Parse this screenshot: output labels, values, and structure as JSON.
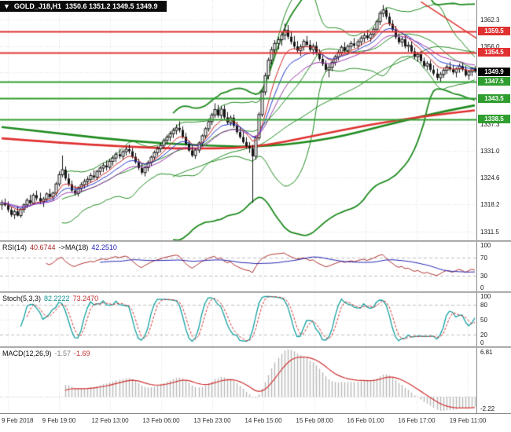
{
  "header": {
    "arrow": "▼",
    "symbol": "GOLD_J18,H1",
    "ohlc": "1350.6 1351.2 1349.5 1349.9"
  },
  "colors": {
    "resistance": "#e03131",
    "support": "#2f9e2f",
    "current": "#000000",
    "candle": "#151515",
    "grid": "#dcdcdc",
    "bollinger": "#1f8b1f",
    "ma_slow_red": "#e03131",
    "ma_slow_green": "#1f8b1f",
    "ma_fast_red": "#cc2222",
    "ma_fast_blue": "#2233cc",
    "ma_fast_purple": "#9933aa",
    "rsi_line": "#b03030",
    "rsi_ma": "#2020b0",
    "stoch_main": "#14a0a0",
    "stoch_signal": "#d03030",
    "macd_hist": "#b8b8b8",
    "macd_signal": "#d03030",
    "level_dash": "#bdbdbd",
    "trendline": "#e03131"
  },
  "panels": {
    "rsi": {
      "name": "RSI(14)",
      "value": "40.6744",
      "ma_name": "->MA(18)",
      "ma_value": "42.2510",
      "ticks": [
        "100",
        "70",
        "30",
        "0"
      ],
      "level_lines": [
        70,
        30
      ]
    },
    "stoch": {
      "name": "Stoch(5,3,3)",
      "value": "82.2222",
      "signal_value": "73.2470",
      "ticks": [
        "100",
        "80",
        "50",
        "20",
        "0"
      ],
      "level_lines": [
        80,
        20
      ]
    },
    "macd": {
      "name": "MACD(12,26,9)",
      "value": "-1.57",
      "signal_value": "-1.69",
      "tick_top": "6.81",
      "tick_bottom": "-2.22"
    }
  },
  "chart_data": {
    "type": "candlestick",
    "symbol": "GOLD_J18",
    "timeframe": "H1",
    "current_bar": {
      "open": 1350.6,
      "high": 1351.2,
      "low": 1349.5,
      "close": 1349.9
    },
    "price_range": {
      "top": 1367.0,
      "bottom": 1309.5
    },
    "y_ticks": [
      1362.3,
      1356.0,
      1349.7,
      1343.4,
      1337.3,
      1331.0,
      1324.6,
      1318.2,
      1311.5
    ],
    "x_labels": [
      "9 Feb 2018",
      "9 Feb 19:00",
      "12 Feb 13:00",
      "13 Feb 06:00",
      "13 Feb 23:00",
      "14 Feb 15:00",
      "15 Feb 08:00",
      "16 Feb 01:00",
      "16 Feb 17:00",
      "19 Feb 11:00"
    ],
    "levels": [
      {
        "price": 1359.5,
        "label": "1359.5",
        "kind": "resistance"
      },
      {
        "price": 1354.5,
        "label": "1354.5",
        "kind": "resistance"
      },
      {
        "price": 1349.9,
        "label": "1349.9",
        "kind": "current"
      },
      {
        "price": 1347.5,
        "label": "1347.5",
        "kind": "support"
      },
      {
        "price": 1343.5,
        "label": "1343.5",
        "kind": "support"
      },
      {
        "price": 1338.5,
        "label": "1338.5",
        "kind": "support"
      }
    ],
    "candles": [
      [
        1318.0,
        1319.2,
        1316.8,
        1318.5
      ],
      [
        1318.5,
        1319.5,
        1317.6,
        1317.9
      ],
      [
        1317.9,
        1318.8,
        1316.2,
        1316.8
      ],
      [
        1316.8,
        1317.5,
        1315.1,
        1315.6
      ],
      [
        1315.6,
        1316.9,
        1314.6,
        1316.4
      ],
      [
        1316.4,
        1317.8,
        1315.2,
        1315.4
      ],
      [
        1315.4,
        1317.2,
        1314.9,
        1316.9
      ],
      [
        1316.9,
        1318.4,
        1316.1,
        1318.0
      ],
      [
        1318.0,
        1319.6,
        1317.2,
        1319.1
      ],
      [
        1319.1,
        1320.4,
        1318.0,
        1318.4
      ],
      [
        1318.4,
        1320.8,
        1318.0,
        1320.3
      ],
      [
        1320.3,
        1321.4,
        1319.0,
        1319.6
      ],
      [
        1319.6,
        1320.9,
        1318.2,
        1318.8
      ],
      [
        1318.8,
        1319.9,
        1317.5,
        1319.4
      ],
      [
        1319.4,
        1321.0,
        1318.6,
        1320.6
      ],
      [
        1320.6,
        1321.8,
        1319.3,
        1319.9
      ],
      [
        1319.9,
        1321.2,
        1318.9,
        1320.8
      ],
      [
        1320.8,
        1323.5,
        1320.2,
        1323.0
      ],
      [
        1323.0,
        1326.0,
        1322.4,
        1325.2
      ],
      [
        1325.2,
        1329.8,
        1324.6,
        1326.4
      ],
      [
        1326.4,
        1327.2,
        1323.8,
        1324.3
      ],
      [
        1324.3,
        1325.5,
        1322.4,
        1322.9
      ],
      [
        1322.9,
        1323.8,
        1320.9,
        1321.4
      ],
      [
        1321.4,
        1322.6,
        1320.2,
        1320.7
      ],
      [
        1320.7,
        1322.4,
        1320.0,
        1321.9
      ],
      [
        1321.9,
        1323.4,
        1321.1,
        1322.8
      ],
      [
        1322.8,
        1324.2,
        1321.9,
        1323.6
      ],
      [
        1323.6,
        1324.8,
        1322.5,
        1324.1
      ],
      [
        1324.1,
        1325.6,
        1323.3,
        1325.0
      ],
      [
        1325.0,
        1326.3,
        1324.0,
        1324.6
      ],
      [
        1324.6,
        1326.4,
        1323.9,
        1326.0
      ],
      [
        1326.0,
        1327.3,
        1325.1,
        1326.8
      ],
      [
        1326.8,
        1328.1,
        1325.8,
        1327.4
      ],
      [
        1327.4,
        1328.6,
        1326.2,
        1327.0
      ],
      [
        1327.0,
        1329.0,
        1326.5,
        1328.4
      ],
      [
        1328.4,
        1329.8,
        1327.4,
        1329.2
      ],
      [
        1329.2,
        1330.6,
        1328.2,
        1330.1
      ],
      [
        1330.1,
        1331.4,
        1329.0,
        1329.6
      ],
      [
        1329.6,
        1331.2,
        1328.8,
        1330.7
      ],
      [
        1330.7,
        1332.0,
        1329.8,
        1331.3
      ],
      [
        1331.3,
        1332.4,
        1330.2,
        1330.8
      ],
      [
        1330.8,
        1331.6,
        1329.1,
        1329.5
      ],
      [
        1329.5,
        1330.4,
        1327.8,
        1328.2
      ],
      [
        1328.2,
        1329.0,
        1326.3,
        1326.8
      ],
      [
        1326.8,
        1327.9,
        1325.2,
        1325.7
      ],
      [
        1325.7,
        1327.4,
        1324.8,
        1326.9
      ],
      [
        1326.9,
        1328.6,
        1326.0,
        1328.1
      ],
      [
        1328.1,
        1329.8,
        1327.3,
        1329.4
      ],
      [
        1329.4,
        1331.0,
        1328.6,
        1330.5
      ],
      [
        1330.5,
        1332.0,
        1329.7,
        1331.4
      ],
      [
        1331.4,
        1332.8,
        1330.5,
        1332.2
      ],
      [
        1332.2,
        1333.9,
        1331.4,
        1333.4
      ],
      [
        1333.4,
        1334.8,
        1332.4,
        1334.2
      ],
      [
        1334.2,
        1335.6,
        1333.2,
        1335.0
      ],
      [
        1335.0,
        1336.4,
        1334.0,
        1335.8
      ],
      [
        1335.8,
        1337.2,
        1334.8,
        1336.4
      ],
      [
        1336.4,
        1338.0,
        1335.3,
        1335.9
      ],
      [
        1335.9,
        1336.8,
        1333.8,
        1334.3
      ],
      [
        1334.3,
        1335.2,
        1332.2,
        1332.6
      ],
      [
        1332.6,
        1333.4,
        1330.6,
        1331.0
      ],
      [
        1331.0,
        1332.2,
        1329.4,
        1329.8
      ],
      [
        1329.8,
        1331.5,
        1329.0,
        1331.1
      ],
      [
        1331.1,
        1333.2,
        1330.4,
        1332.8
      ],
      [
        1332.8,
        1334.9,
        1332.0,
        1334.5
      ],
      [
        1334.5,
        1336.6,
        1333.8,
        1336.2
      ],
      [
        1336.2,
        1338.3,
        1335.5,
        1337.9
      ],
      [
        1337.9,
        1340.0,
        1337.1,
        1339.5
      ],
      [
        1339.5,
        1342.3,
        1338.8,
        1340.8
      ],
      [
        1340.8,
        1341.9,
        1338.9,
        1339.4
      ],
      [
        1339.4,
        1341.6,
        1338.6,
        1340.9
      ],
      [
        1340.9,
        1341.8,
        1338.4,
        1338.9
      ],
      [
        1338.9,
        1340.2,
        1337.2,
        1337.7
      ],
      [
        1337.7,
        1339.4,
        1336.9,
        1338.8
      ],
      [
        1338.8,
        1339.6,
        1336.4,
        1336.9
      ],
      [
        1336.9,
        1337.8,
        1334.9,
        1335.4
      ],
      [
        1335.4,
        1336.6,
        1333.8,
        1334.2
      ],
      [
        1334.2,
        1335.4,
        1332.6,
        1333.0
      ],
      [
        1333.0,
        1334.2,
        1331.5,
        1332.0
      ],
      [
        1332.0,
        1333.0,
        1330.4,
        1331.5
      ],
      [
        1331.5,
        1332.4,
        1318.5,
        1329.6
      ],
      [
        1329.6,
        1334.6,
        1328.8,
        1334.0
      ],
      [
        1334.0,
        1340.2,
        1333.4,
        1339.6
      ],
      [
        1339.6,
        1345.6,
        1339.0,
        1345.0
      ],
      [
        1345.0,
        1349.6,
        1344.2,
        1348.9
      ],
      [
        1348.9,
        1353.2,
        1348.0,
        1352.6
      ],
      [
        1352.6,
        1355.8,
        1351.6,
        1355.1
      ],
      [
        1355.1,
        1357.4,
        1353.9,
        1356.6
      ],
      [
        1356.6,
        1358.2,
        1355.2,
        1357.5
      ],
      [
        1357.5,
        1359.4,
        1356.1,
        1358.6
      ],
      [
        1358.6,
        1361.4,
        1357.4,
        1359.8
      ],
      [
        1359.8,
        1361.0,
        1357.6,
        1358.2
      ],
      [
        1358.2,
        1359.6,
        1356.4,
        1357.0
      ],
      [
        1357.0,
        1358.4,
        1355.3,
        1355.9
      ],
      [
        1355.9,
        1357.2,
        1354.4,
        1354.9
      ],
      [
        1354.9,
        1356.4,
        1353.6,
        1355.8
      ],
      [
        1355.8,
        1357.6,
        1354.9,
        1357.1
      ],
      [
        1357.1,
        1358.4,
        1355.7,
        1356.3
      ],
      [
        1356.3,
        1357.4,
        1354.6,
        1355.1
      ],
      [
        1355.1,
        1356.6,
        1353.9,
        1356.0
      ],
      [
        1356.0,
        1357.0,
        1353.8,
        1354.3
      ],
      [
        1354.3,
        1355.2,
        1352.4,
        1352.9
      ],
      [
        1352.9,
        1353.8,
        1351.2,
        1351.7
      ],
      [
        1351.7,
        1352.6,
        1349.8,
        1350.3
      ],
      [
        1350.3,
        1351.8,
        1348.5,
        1350.9
      ],
      [
        1350.9,
        1352.6,
        1350.0,
        1352.1
      ],
      [
        1352.1,
        1353.9,
        1351.3,
        1353.4
      ],
      [
        1353.4,
        1355.0,
        1352.5,
        1354.5
      ],
      [
        1354.5,
        1356.2,
        1353.7,
        1355.7
      ],
      [
        1355.7,
        1356.9,
        1354.4,
        1354.9
      ],
      [
        1354.9,
        1356.4,
        1353.9,
        1355.9
      ],
      [
        1355.9,
        1357.2,
        1355.0,
        1356.6
      ],
      [
        1356.6,
        1357.9,
        1355.5,
        1356.1
      ],
      [
        1356.1,
        1357.6,
        1355.2,
        1357.0
      ],
      [
        1357.0,
        1358.5,
        1356.2,
        1357.9
      ],
      [
        1357.9,
        1359.2,
        1356.9,
        1358.5
      ],
      [
        1358.5,
        1359.8,
        1357.4,
        1357.9
      ],
      [
        1357.9,
        1359.4,
        1357.0,
        1358.8
      ],
      [
        1358.8,
        1360.5,
        1358.0,
        1360.0
      ],
      [
        1360.0,
        1362.3,
        1359.2,
        1361.8
      ],
      [
        1361.8,
        1364.4,
        1361.0,
        1363.8
      ],
      [
        1363.8,
        1365.8,
        1362.9,
        1364.6
      ],
      [
        1364.6,
        1365.2,
        1362.4,
        1363.0
      ],
      [
        1363.0,
        1363.9,
        1360.8,
        1361.3
      ],
      [
        1361.3,
        1362.2,
        1359.4,
        1359.9
      ],
      [
        1359.9,
        1360.8,
        1357.6,
        1358.1
      ],
      [
        1358.1,
        1359.0,
        1356.4,
        1356.9
      ],
      [
        1356.9,
        1358.2,
        1355.8,
        1357.6
      ],
      [
        1357.6,
        1358.4,
        1355.4,
        1355.9
      ],
      [
        1355.9,
        1357.0,
        1354.6,
        1356.2
      ],
      [
        1356.2,
        1357.1,
        1354.2,
        1354.7
      ],
      [
        1354.7,
        1355.6,
        1352.9,
        1353.4
      ],
      [
        1353.4,
        1354.6,
        1352.2,
        1354.0
      ],
      [
        1354.0,
        1354.8,
        1351.9,
        1352.4
      ],
      [
        1352.4,
        1353.2,
        1350.7,
        1351.2
      ],
      [
        1351.2,
        1352.4,
        1350.2,
        1351.8
      ],
      [
        1351.8,
        1352.6,
        1349.8,
        1350.3
      ],
      [
        1350.3,
        1351.4,
        1348.9,
        1349.4
      ],
      [
        1349.4,
        1350.6,
        1347.8,
        1348.4
      ],
      [
        1348.4,
        1349.8,
        1347.4,
        1349.2
      ],
      [
        1349.2,
        1350.7,
        1348.4,
        1350.2
      ],
      [
        1350.2,
        1351.6,
        1349.3,
        1351.0
      ],
      [
        1351.0,
        1352.2,
        1349.9,
        1350.4
      ],
      [
        1350.4,
        1351.5,
        1349.2,
        1349.7
      ],
      [
        1349.7,
        1350.9,
        1348.5,
        1350.5
      ],
      [
        1350.5,
        1351.8,
        1349.6,
        1351.2
      ],
      [
        1351.2,
        1352.0,
        1349.9,
        1350.4
      ],
      [
        1350.4,
        1351.2,
        1348.6,
        1349.0
      ],
      [
        1349.0,
        1350.1,
        1347.9,
        1349.8
      ],
      [
        1349.8,
        1350.9,
        1348.8,
        1350.6
      ],
      [
        1350.6,
        1351.2,
        1349.5,
        1349.9
      ]
    ],
    "overlays": {
      "horizontal_lines": [
        {
          "price": 1359.5,
          "kind": "resistance"
        },
        {
          "price": 1354.5,
          "kind": "resistance"
        },
        {
          "price": 1347.5,
          "kind": "support"
        },
        {
          "price": 1343.5,
          "kind": "support"
        },
        {
          "price": 1338.5,
          "kind": "support"
        }
      ],
      "bollinger": [
        {
          "period": 20,
          "deviation": 2.0
        },
        {
          "period": 55,
          "deviation": 2.8
        }
      ],
      "fast_mas": [
        {
          "period": 8,
          "color_key": "ma_fast_red"
        },
        {
          "period": 13,
          "color_key": "ma_fast_blue"
        },
        {
          "period": 21,
          "color_key": "ma_fast_purple"
        }
      ],
      "slow_red_ma_points": [
        [
          0,
          1333.9
        ],
        [
          17,
          1332.9
        ],
        [
          37,
          1332.0
        ],
        [
          56,
          1331.4
        ],
        [
          79,
          1331.6
        ],
        [
          99,
          1334.6
        ],
        [
          116,
          1337.2
        ],
        [
          133,
          1339.2
        ],
        [
          149,
          1340.6
        ]
      ],
      "slow_green_ma_points": [
        [
          0,
          1336.6
        ],
        [
          21,
          1334.8
        ],
        [
          41,
          1333.2
        ],
        [
          62,
          1332.2
        ],
        [
          83,
          1331.8
        ],
        [
          104,
          1333.8
        ],
        [
          120,
          1336.9
        ],
        [
          137,
          1340.0
        ],
        [
          149,
          1341.8
        ]
      ],
      "trendline": [
        [
          132,
          1366.6
        ],
        [
          150,
          1357.6
        ]
      ]
    },
    "indicators": {
      "rsi": {
        "period": 14,
        "ma_period": 18,
        "last": 40.6744,
        "ma_last": 42.251
      },
      "stochastic": {
        "k": 5,
        "d": 3,
        "slowing": 3,
        "last": 82.2222,
        "signal_last": 73.247
      },
      "macd": {
        "fast_ema": 12,
        "slow_ema": 26,
        "signal": 9,
        "last": -1.57,
        "signal_last": -1.69,
        "scale_max": 6.81,
        "scale_min": -2.22
      }
    }
  }
}
